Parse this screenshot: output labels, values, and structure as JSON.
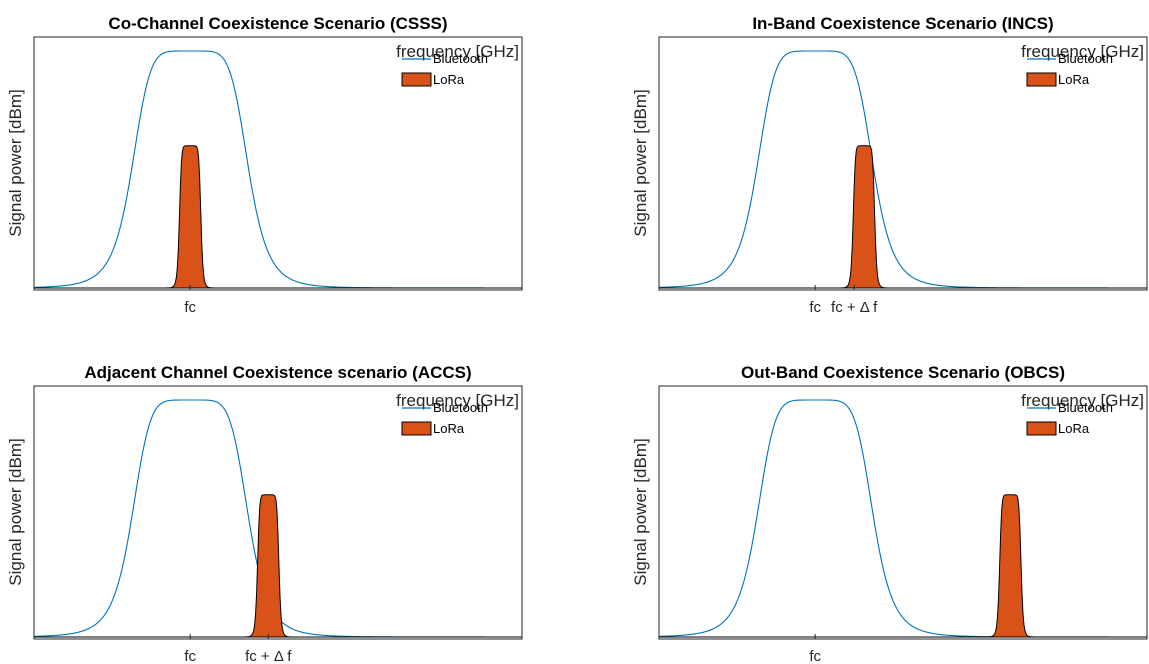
{
  "chart_data": [
    {
      "type": "area",
      "title": "Co-Channel Coexistence Scenario (CSSS)",
      "xlabel": "frequency [GHz]",
      "ylabel": "Signal power [dBm]",
      "x_ticks": [
        {
          "label": "fc",
          "x": 0.32
        }
      ],
      "series": [
        {
          "name": "Bluetooth",
          "kind": "line",
          "color": "#0072BD",
          "center": 0.32,
          "peak": 1.0,
          "half_width": 0.12
        },
        {
          "name": "LoRa",
          "kind": "filled",
          "color": "#D95319",
          "center": 0.32,
          "peak": 0.6,
          "half_width": 0.022
        }
      ],
      "legend_position": "top-right",
      "grid": false
    },
    {
      "type": "area",
      "title": "In-Band Coexistence Scenario (INCS)",
      "xlabel": "frequency [GHz]",
      "ylabel": "Signal power [dBm]",
      "x_ticks": [
        {
          "label": "fc",
          "x": 0.32
        },
        {
          "label": "fc + Δ f",
          "x": 0.4
        }
      ],
      "series": [
        {
          "name": "Bluetooth",
          "kind": "line",
          "color": "#0072BD",
          "center": 0.32,
          "peak": 1.0,
          "half_width": 0.12
        },
        {
          "name": "LoRa",
          "kind": "filled",
          "color": "#D95319",
          "center": 0.42,
          "peak": 0.6,
          "half_width": 0.022
        }
      ],
      "legend_position": "top-right",
      "grid": false
    },
    {
      "type": "area",
      "title": "Adjacent Channel Coexistence scenario (ACCS)",
      "xlabel": "frequency [GHz]",
      "ylabel": "Signal power [dBm]",
      "x_ticks": [
        {
          "label": "fc",
          "x": 0.32
        },
        {
          "label": "fc + Δ f",
          "x": 0.48
        }
      ],
      "series": [
        {
          "name": "Bluetooth",
          "kind": "line",
          "color": "#0072BD",
          "center": 0.32,
          "peak": 1.0,
          "half_width": 0.12
        },
        {
          "name": "LoRa",
          "kind": "filled",
          "color": "#D95319",
          "center": 0.48,
          "peak": 0.6,
          "half_width": 0.022
        }
      ],
      "legend_position": "top-right",
      "grid": false
    },
    {
      "type": "area",
      "title": "Out-Band Coexistence Scenario (OBCS)",
      "xlabel": "frequency [GHz]",
      "ylabel": "Signal power [dBm]",
      "x_ticks": [
        {
          "label": "fc",
          "x": 0.32
        }
      ],
      "series": [
        {
          "name": "Bluetooth",
          "kind": "line",
          "color": "#0072BD",
          "center": 0.32,
          "peak": 1.0,
          "half_width": 0.12
        },
        {
          "name": "LoRa",
          "kind": "filled",
          "color": "#D95319",
          "center": 0.72,
          "peak": 0.6,
          "half_width": 0.022
        }
      ],
      "legend_position": "top-right",
      "grid": false
    }
  ]
}
